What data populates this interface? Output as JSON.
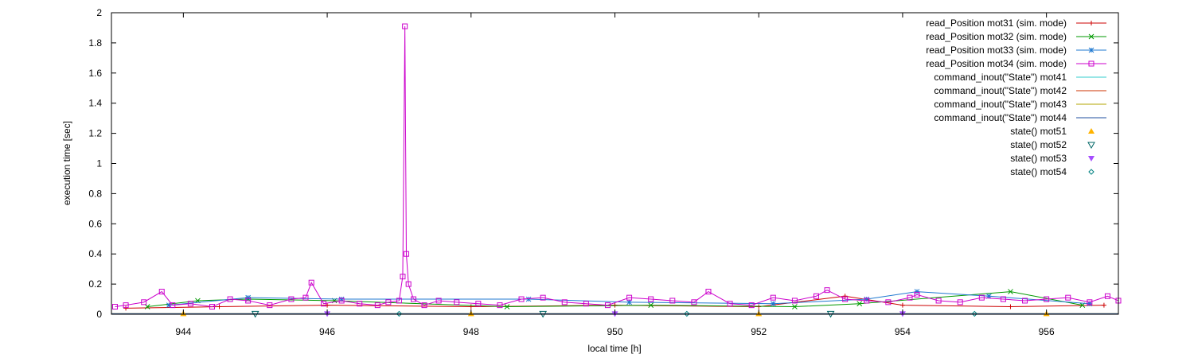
{
  "chart_data": {
    "type": "line",
    "title": "",
    "xlabel": "local time [h]",
    "ylabel": "execution time [sec]",
    "xlim": [
      943,
      957
    ],
    "ylim": [
      0,
      2
    ],
    "xticks": [
      "944",
      "946",
      "948",
      "950",
      "952",
      "954",
      "956"
    ],
    "yticks": [
      "0",
      "0.2",
      "0.4",
      "0.6",
      "0.8",
      "1",
      "1.2",
      "1.4",
      "1.6",
      "1.8",
      "2"
    ],
    "grid": false,
    "legend_position": "top-right",
    "series": [
      {
        "name": "read_Position mot31 (sim. mode)",
        "color": "#cc0000",
        "marker": "plus",
        "style": "linespoints",
        "x": [
          943.2,
          944.5,
          946.0,
          948.0,
          950.0,
          952.0,
          953.2,
          954.0,
          955.5,
          956.8
        ],
        "y": [
          0.04,
          0.05,
          0.06,
          0.05,
          0.06,
          0.05,
          0.12,
          0.06,
          0.05,
          0.06
        ]
      },
      {
        "name": "read_Position mot32 (sim. mode)",
        "color": "#009900",
        "marker": "x",
        "style": "linespoints",
        "x": [
          943.5,
          944.2,
          944.9,
          946.1,
          948.5,
          950.5,
          952.5,
          953.4,
          955.5,
          956.5
        ],
        "y": [
          0.05,
          0.09,
          0.1,
          0.09,
          0.05,
          0.06,
          0.05,
          0.07,
          0.15,
          0.06
        ]
      },
      {
        "name": "read_Position mot33 (sim. mode)",
        "color": "#1f78d0",
        "marker": "star",
        "style": "linespoints",
        "x": [
          943.8,
          944.9,
          946.2,
          948.8,
          950.2,
          952.2,
          953.5,
          954.2,
          955.2,
          956.6
        ],
        "y": [
          0.06,
          0.11,
          0.1,
          0.1,
          0.08,
          0.07,
          0.1,
          0.15,
          0.12,
          0.07
        ]
      },
      {
        "name": "read_Position mot34 (sim. mode)",
        "color": "#cc00cc",
        "marker": "square",
        "style": "linespoints",
        "x": [
          943.05,
          943.2,
          943.45,
          943.7,
          943.85,
          944.1,
          944.4,
          944.65,
          944.9,
          945.2,
          945.5,
          945.7,
          945.78,
          945.95,
          946.2,
          946.45,
          946.7,
          946.85,
          947.0,
          947.05,
          947.08,
          947.1,
          947.13,
          947.2,
          947.35,
          947.55,
          947.8,
          948.1,
          948.4,
          948.7,
          949.0,
          949.3,
          949.6,
          949.9,
          950.2,
          950.5,
          950.8,
          951.1,
          951.3,
          951.6,
          951.9,
          952.2,
          952.5,
          952.8,
          952.95,
          953.2,
          953.5,
          953.8,
          954.1,
          954.2,
          954.5,
          954.8,
          955.1,
          955.4,
          955.7,
          956.0,
          956.3,
          956.6,
          956.85,
          957.0
        ],
        "y": [
          0.05,
          0.06,
          0.08,
          0.15,
          0.06,
          0.07,
          0.05,
          0.1,
          0.09,
          0.06,
          0.1,
          0.11,
          0.21,
          0.07,
          0.09,
          0.07,
          0.06,
          0.08,
          0.09,
          0.25,
          1.91,
          0.4,
          0.2,
          0.1,
          0.06,
          0.09,
          0.08,
          0.07,
          0.06,
          0.1,
          0.11,
          0.08,
          0.07,
          0.06,
          0.11,
          0.1,
          0.09,
          0.08,
          0.15,
          0.07,
          0.06,
          0.11,
          0.09,
          0.12,
          0.16,
          0.1,
          0.09,
          0.08,
          0.11,
          0.13,
          0.09,
          0.08,
          0.11,
          0.1,
          0.09,
          0.1,
          0.11,
          0.08,
          0.12,
          0.09
        ]
      },
      {
        "name": "command_inout(\"State\") mot41",
        "color": "#33cccc",
        "marker": "none",
        "style": "lines",
        "x": [
          943,
          957
        ],
        "y": [
          0.003,
          0.003
        ]
      },
      {
        "name": "command_inout(\"State\") mot42",
        "color": "#cc3300",
        "marker": "none",
        "style": "lines",
        "x": [
          943,
          957
        ],
        "y": [
          0.003,
          0.003
        ]
      },
      {
        "name": "command_inout(\"State\") mot43",
        "color": "#b3a600",
        "marker": "none",
        "style": "lines",
        "x": [
          943,
          957
        ],
        "y": [
          0.003,
          0.003
        ]
      },
      {
        "name": "command_inout(\"State\") mot44",
        "color": "#1f4f9f",
        "marker": "none",
        "style": "lines",
        "x": [
          943,
          957
        ],
        "y": [
          0.003,
          0.003
        ]
      },
      {
        "name": "state() mot51",
        "color": "#ffb300",
        "marker": "triangle-up",
        "style": "points",
        "x": [
          944.0,
          948.0,
          952.0,
          956.0
        ],
        "y": [
          0.003,
          0.003,
          0.003,
          0.003
        ]
      },
      {
        "name": "state() mot52",
        "color": "#006666",
        "marker": "triangle-down-open",
        "style": "points",
        "x": [
          945.0,
          949.0,
          953.0
        ],
        "y": [
          0.003,
          0.003,
          0.003
        ]
      },
      {
        "name": "state() mot53",
        "color": "#a64dff",
        "marker": "triangle-down",
        "style": "points",
        "x": [
          946.0,
          950.0,
          954.0
        ],
        "y": [
          0.003,
          0.003,
          0.003
        ]
      },
      {
        "name": "state() mot54",
        "color": "#008080",
        "marker": "diamond-open",
        "style": "points",
        "x": [
          947.0,
          951.0,
          955.0
        ],
        "y": [
          0.003,
          0.003,
          0.003
        ]
      }
    ]
  }
}
